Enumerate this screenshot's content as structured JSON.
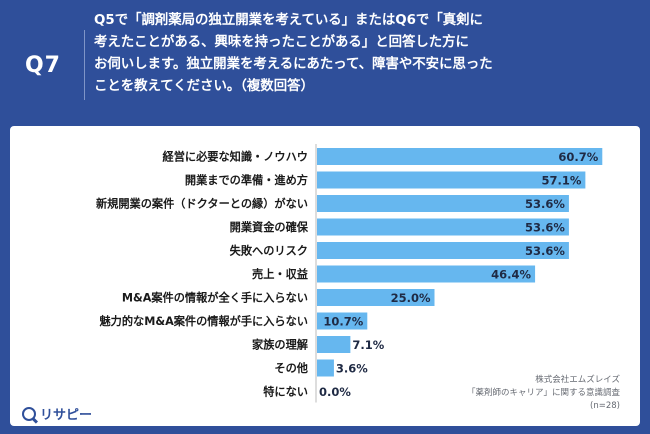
{
  "header": {
    "badge": "Q7",
    "question": "Q5で「調剤薬局の独立開業を考えている」またはQ6で「真剣に\n考えたことがある、興味を持ったことがある」と回答した方に\nお伺いします。独立開業を考えるにあたって、障害や不安に思った\nことを教えてください。（複数回答）"
  },
  "source": {
    "company": "株式会社エムズレイズ",
    "survey": "「薬剤師のキャリア」に関する意識調査",
    "sample": "(n=28)"
  },
  "logo": {
    "text": "リサピー"
  },
  "colors": {
    "bar": "#66b7ef",
    "background": "#2f4f9a",
    "label": "#1a1a1a",
    "axis": "#bbbbbb"
  },
  "chart_data": {
    "type": "bar",
    "orientation": "horizontal",
    "categories": [
      "経営に必要な知識・ノウハウ",
      "開業までの準備・進め方",
      "新規開業の案件（ドクターとの縁）がない",
      "開業資金の確保",
      "失敗へのリスク",
      "売上・収益",
      "M&A案件の情報が全く手に入らない",
      "魅力的なM&A案件の情報が手に入らない",
      "家族の理解",
      "その他",
      "特にない"
    ],
    "values": [
      60.7,
      57.1,
      53.6,
      53.6,
      53.6,
      46.4,
      25.0,
      10.7,
      7.1,
      3.6,
      0.0
    ],
    "value_labels": [
      "60.7%",
      "57.1%",
      "53.6%",
      "53.6%",
      "53.6%",
      "46.4%",
      "25.0%",
      "10.7%",
      "7.1%",
      "3.6%",
      "0.0%"
    ],
    "xlim": [
      0,
      100
    ],
    "grid": false,
    "title": "",
    "xlabel": "",
    "ylabel": ""
  }
}
